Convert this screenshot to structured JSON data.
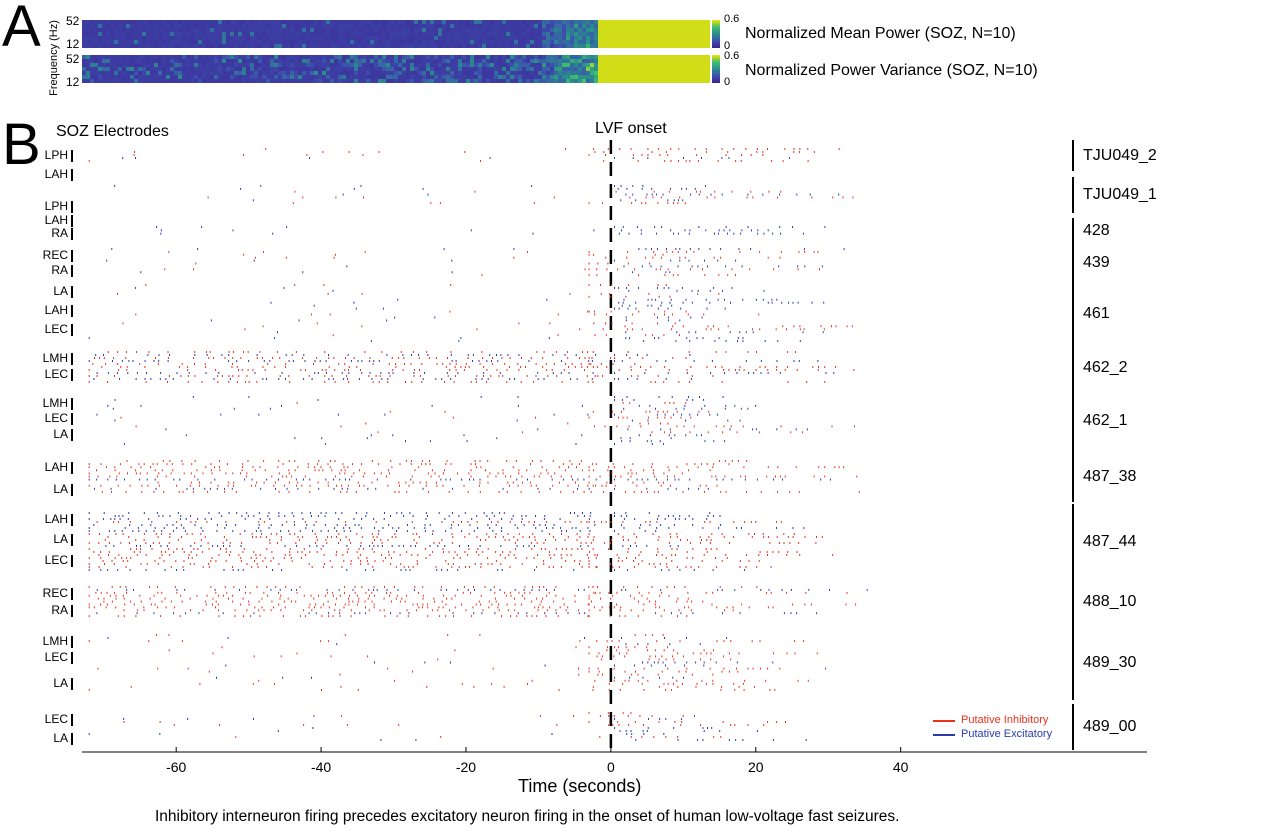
{
  "panel_a": {
    "letter": "A",
    "ylabel": "Frequency (Hz)",
    "ytick_top": "52",
    "ytick_bottom": "12",
    "colorbar_max": "0.6",
    "colorbar_min": "0",
    "colormap": [
      "#3b1f8c",
      "#3d4fb0",
      "#2a8c8c",
      "#3fbf6f",
      "#f5e400"
    ],
    "heatmaps": [
      {
        "title": "Normalized Mean Power (SOZ, N=10)"
      },
      {
        "title": "Normalized Power Variance (SOZ, N=10)"
      }
    ]
  },
  "panel_b": {
    "letter": "B",
    "electrodes_header": "SOZ Electrodes",
    "onset_label": "LVF onset",
    "colors": {
      "inhibitory": "#e8321e",
      "excitatory": "#2a3bb0"
    },
    "legend": [
      {
        "label": "Putative Inhibitory",
        "color": "#e8321e"
      },
      {
        "label": "Putative Excitatory",
        "color": "#2a3bb0"
      }
    ],
    "seizures": [
      {
        "name": "TJU049_2",
        "electrodes": [
          "LPH",
          "LAH"
        ]
      },
      {
        "name": "TJU049_1",
        "electrodes": [
          "LPH",
          "LAH"
        ]
      },
      {
        "name": "428",
        "electrodes": [
          "RA"
        ]
      },
      {
        "name": "439",
        "electrodes": [
          "REC",
          "RA"
        ]
      },
      {
        "name": "461",
        "electrodes": [
          "LA",
          "LAH",
          "LEC"
        ]
      },
      {
        "name": "462_2",
        "electrodes": [
          "LMH",
          "LEC"
        ]
      },
      {
        "name": "462_1",
        "electrodes": [
          "LMH",
          "LEC",
          "LA"
        ]
      },
      {
        "name": "487_38",
        "electrodes": [
          "LAH",
          "LA"
        ]
      },
      {
        "name": "487_44",
        "electrodes": [
          "LAH",
          "LA",
          "LEC"
        ]
      },
      {
        "name": "488_10",
        "electrodes": [
          "REC",
          "RA"
        ]
      },
      {
        "name": "489_30",
        "electrodes": [
          "LMH",
          "LEC",
          "LA"
        ]
      },
      {
        "name": "489_00",
        "electrodes": [
          "LEC",
          "LA"
        ]
      }
    ]
  },
  "chart_data": {
    "type": "scatter",
    "xlabel": "Time (seconds)",
    "xlim": [
      -73,
      74
    ],
    "xticks": [
      "-60",
      "-40",
      "-20",
      "0",
      "20",
      "40"
    ],
    "onset_x": 0,
    "series": [
      {
        "name": "Putative Inhibitory",
        "color": "#e8321e"
      },
      {
        "name": "Putative Excitatory",
        "color": "#2a3bb0"
      }
    ]
  },
  "caption": "Inhibitory interneuron firing precedes excitatory neuron firing in the onset of human low-voltage fast seizures."
}
